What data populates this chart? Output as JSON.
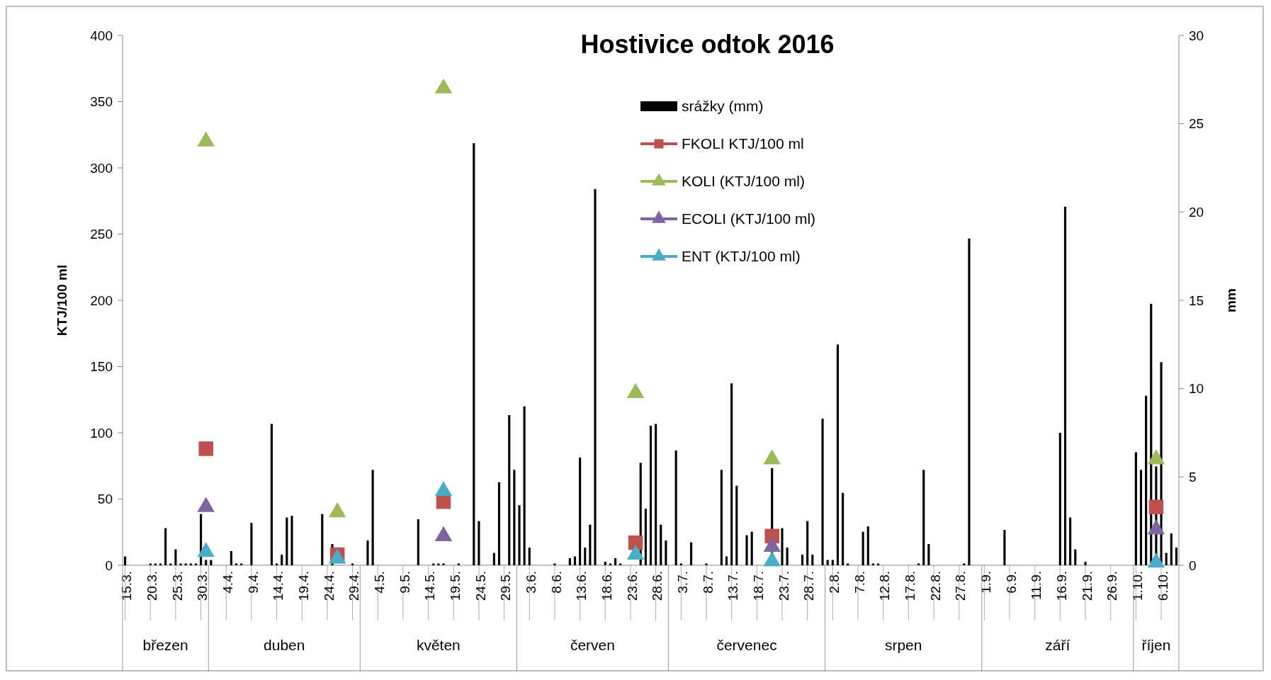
{
  "chart_data": {
    "type": "bar",
    "title": "Hostivice odtok 2016",
    "ylabel": "KTJ/100 ml",
    "y2label": "mm",
    "xlim": [
      "--03-15",
      "--10-09"
    ],
    "xticks": [
      {
        "value": "--03-15",
        "label": "15.3."
      },
      {
        "value": "--03-20",
        "label": "20.3."
      },
      {
        "value": "--03-25",
        "label": "25.3."
      },
      {
        "value": "--03-30",
        "label": "30.3."
      },
      {
        "value": "--04-04",
        "label": "4.4."
      },
      {
        "value": "--04-09",
        "label": "9.4."
      },
      {
        "value": "--04-14",
        "label": "14.4."
      },
      {
        "value": "--04-19",
        "label": "19.4."
      },
      {
        "value": "--04-24",
        "label": "24.4."
      },
      {
        "value": "--04-29",
        "label": "29.4."
      },
      {
        "value": "--05-04",
        "label": "4.5."
      },
      {
        "value": "--05-09",
        "label": "9.5."
      },
      {
        "value": "--05-14",
        "label": "14.5."
      },
      {
        "value": "--05-19",
        "label": "19.5."
      },
      {
        "value": "--05-24",
        "label": "24.5."
      },
      {
        "value": "--05-29",
        "label": "29.5."
      },
      {
        "value": "--06-03",
        "label": "3.6."
      },
      {
        "value": "--06-08",
        "label": "8.6."
      },
      {
        "value": "--06-13",
        "label": "13.6."
      },
      {
        "value": "--06-18",
        "label": "18.6."
      },
      {
        "value": "--06-23",
        "label": "23.6."
      },
      {
        "value": "--06-28",
        "label": "28.6."
      },
      {
        "value": "--07-03",
        "label": "3.7."
      },
      {
        "value": "--07-08",
        "label": "8.7."
      },
      {
        "value": "--07-13",
        "label": "13.7."
      },
      {
        "value": "--07-18",
        "label": "18.7."
      },
      {
        "value": "--07-23",
        "label": "23.7."
      },
      {
        "value": "--07-28",
        "label": "28.7."
      },
      {
        "value": "--08-02",
        "label": "2.8."
      },
      {
        "value": "--08-07",
        "label": "7.8."
      },
      {
        "value": "--08-12",
        "label": "12.8."
      },
      {
        "value": "--08-17",
        "label": "17.8."
      },
      {
        "value": "--08-22",
        "label": "22.8."
      },
      {
        "value": "--08-27",
        "label": "27.8."
      },
      {
        "value": "--09-01",
        "label": "1.9."
      },
      {
        "value": "--09-06",
        "label": "6.9."
      },
      {
        "value": "--09-11",
        "label": "11.9."
      },
      {
        "value": "--09-16",
        "label": "16.9."
      },
      {
        "value": "--09-21",
        "label": "21.9."
      },
      {
        "value": "--09-26",
        "label": "26.9."
      },
      {
        "value": "--10-01",
        "label": "1.10."
      },
      {
        "value": "--10-06",
        "label": "6.10."
      }
    ],
    "ylim": [
      0,
      400
    ],
    "yticks": [
      0,
      50,
      100,
      150,
      200,
      250,
      300,
      350,
      400
    ],
    "y2lim": [
      0,
      30
    ],
    "y2ticks": [
      0,
      5,
      10,
      15,
      20,
      25,
      30
    ],
    "legend": "top right",
    "annotations": [
      "březen",
      "duben",
      "květen",
      "červen",
      "červenec",
      "srpen",
      "září",
      "říjen"
    ],
    "series": [
      {
        "name": "srážky (mm)",
        "axis": "y2",
        "color": "#000000",
        "x": [
          "--03-15",
          "--03-20",
          "--03-21",
          "--03-22",
          "--03-23",
          "--03-24",
          "--03-25",
          "--03-26",
          "--03-27",
          "--03-28",
          "--03-29",
          "--03-30",
          "--03-31",
          "--04-01",
          "--04-05",
          "--04-06",
          "--04-07",
          "--04-09",
          "--04-13",
          "--04-14",
          "--04-15",
          "--04-16",
          "--04-17",
          "--04-23",
          "--04-25",
          "--04-29",
          "--05-02",
          "--05-03",
          "--05-12",
          "--05-15",
          "--05-16",
          "--05-17",
          "--05-20",
          "--05-23",
          "--05-24",
          "--05-27",
          "--05-28",
          "--05-30",
          "--05-31",
          "--06-01",
          "--06-02",
          "--06-03",
          "--06-08",
          "--06-11",
          "--06-12",
          "--06-13",
          "--06-14",
          "--06-15",
          "--06-16",
          "--06-18",
          "--06-19",
          "--06-20",
          "--06-21",
          "--06-25",
          "--06-26",
          "--06-27",
          "--06-28",
          "--06-29",
          "--06-30",
          "--07-02",
          "--07-03",
          "--07-05",
          "--07-08",
          "--07-11",
          "--07-12",
          "--07-13",
          "--07-14",
          "--07-16",
          "--07-17",
          "--07-21",
          "--07-23",
          "--07-24",
          "--07-27",
          "--07-28",
          "--07-29",
          "--07-31",
          "--08-01",
          "--08-02",
          "--08-03",
          "--08-04",
          "--08-05",
          "--08-08",
          "--08-09",
          "--08-10",
          "--08-11",
          "--08-19",
          "--08-20",
          "--08-21",
          "--08-28",
          "--08-29",
          "--09-05",
          "--09-16",
          "--09-17",
          "--09-18",
          "--09-19",
          "--09-21",
          "--10-01",
          "--10-02",
          "--10-03",
          "--10-04",
          "--10-05",
          "--10-06",
          "--10-07",
          "--10-08",
          "--10-09"
        ],
        "values": [
          0.5,
          0.1,
          0.1,
          0.1,
          2.1,
          0.1,
          0.9,
          0.1,
          0.1,
          0.1,
          0.1,
          2.9,
          0.3,
          0.3,
          0.8,
          0.1,
          0.1,
          2.4,
          8.0,
          0.1,
          0.6,
          2.7,
          2.8,
          2.9,
          1.2,
          0.1,
          1.4,
          5.4,
          2.6,
          0.1,
          0.1,
          0.1,
          0.1,
          23.9,
          2.5,
          0.7,
          4.7,
          8.5,
          5.4,
          3.4,
          9.0,
          1.0,
          0.1,
          0.4,
          0.5,
          6.1,
          1.0,
          2.3,
          21.3,
          0.2,
          0.1,
          0.4,
          0.1,
          5.8,
          3.2,
          7.9,
          8.0,
          2.3,
          1.4,
          6.5,
          0.1,
          1.3,
          0.1,
          5.4,
          0.5,
          10.3,
          4.5,
          1.7,
          1.9,
          5.5,
          2.1,
          1.0,
          0.6,
          2.5,
          0.6,
          8.3,
          0.3,
          0.3,
          12.5,
          4.1,
          0.1,
          1.9,
          2.2,
          0.1,
          0.1,
          0.1,
          5.4,
          1.2,
          0.1,
          18.5,
          2.0,
          7.5,
          20.3,
          2.7,
          0.9,
          0.2,
          6.4,
          5.4,
          9.6,
          14.8,
          5.6,
          11.5,
          0.7,
          1.8,
          1.0
        ]
      },
      {
        "name": "FKOLI KTJ/100 ml",
        "type": "scatter",
        "marker": "square",
        "color": "#c0504d",
        "x": [
          "--03-31",
          "--04-26",
          "--05-17",
          "--06-24",
          "--07-21",
          "--10-05"
        ],
        "values": [
          88,
          8,
          48,
          17,
          22,
          44
        ]
      },
      {
        "name": "KOLI (KTJ/100 ml)",
        "type": "scatter",
        "marker": "triangle",
        "color": "#9bbb59",
        "x": [
          "--03-31",
          "--04-26",
          "--05-17",
          "--06-24",
          "--07-21",
          "--10-05"
        ],
        "values": [
          320,
          40,
          360,
          130,
          80,
          80
        ]
      },
      {
        "name": "ECOLI (KTJ/100 ml)",
        "type": "scatter",
        "marker": "triangle",
        "color": "#8064a2",
        "x": [
          "--03-31",
          "--04-26",
          "--05-17",
          "--06-24",
          "--07-21",
          "--10-05"
        ],
        "values": [
          44,
          null,
          22,
          null,
          14,
          27
        ]
      },
      {
        "name": "ENT (KTJ/100 ml)",
        "type": "scatter",
        "marker": "triangle",
        "color": "#4bacc6",
        "x": [
          "--03-31",
          "--04-26",
          "--05-17",
          "--06-24",
          "--07-21",
          "--10-05"
        ],
        "values": [
          10,
          5,
          56,
          8,
          3,
          2
        ]
      }
    ]
  }
}
